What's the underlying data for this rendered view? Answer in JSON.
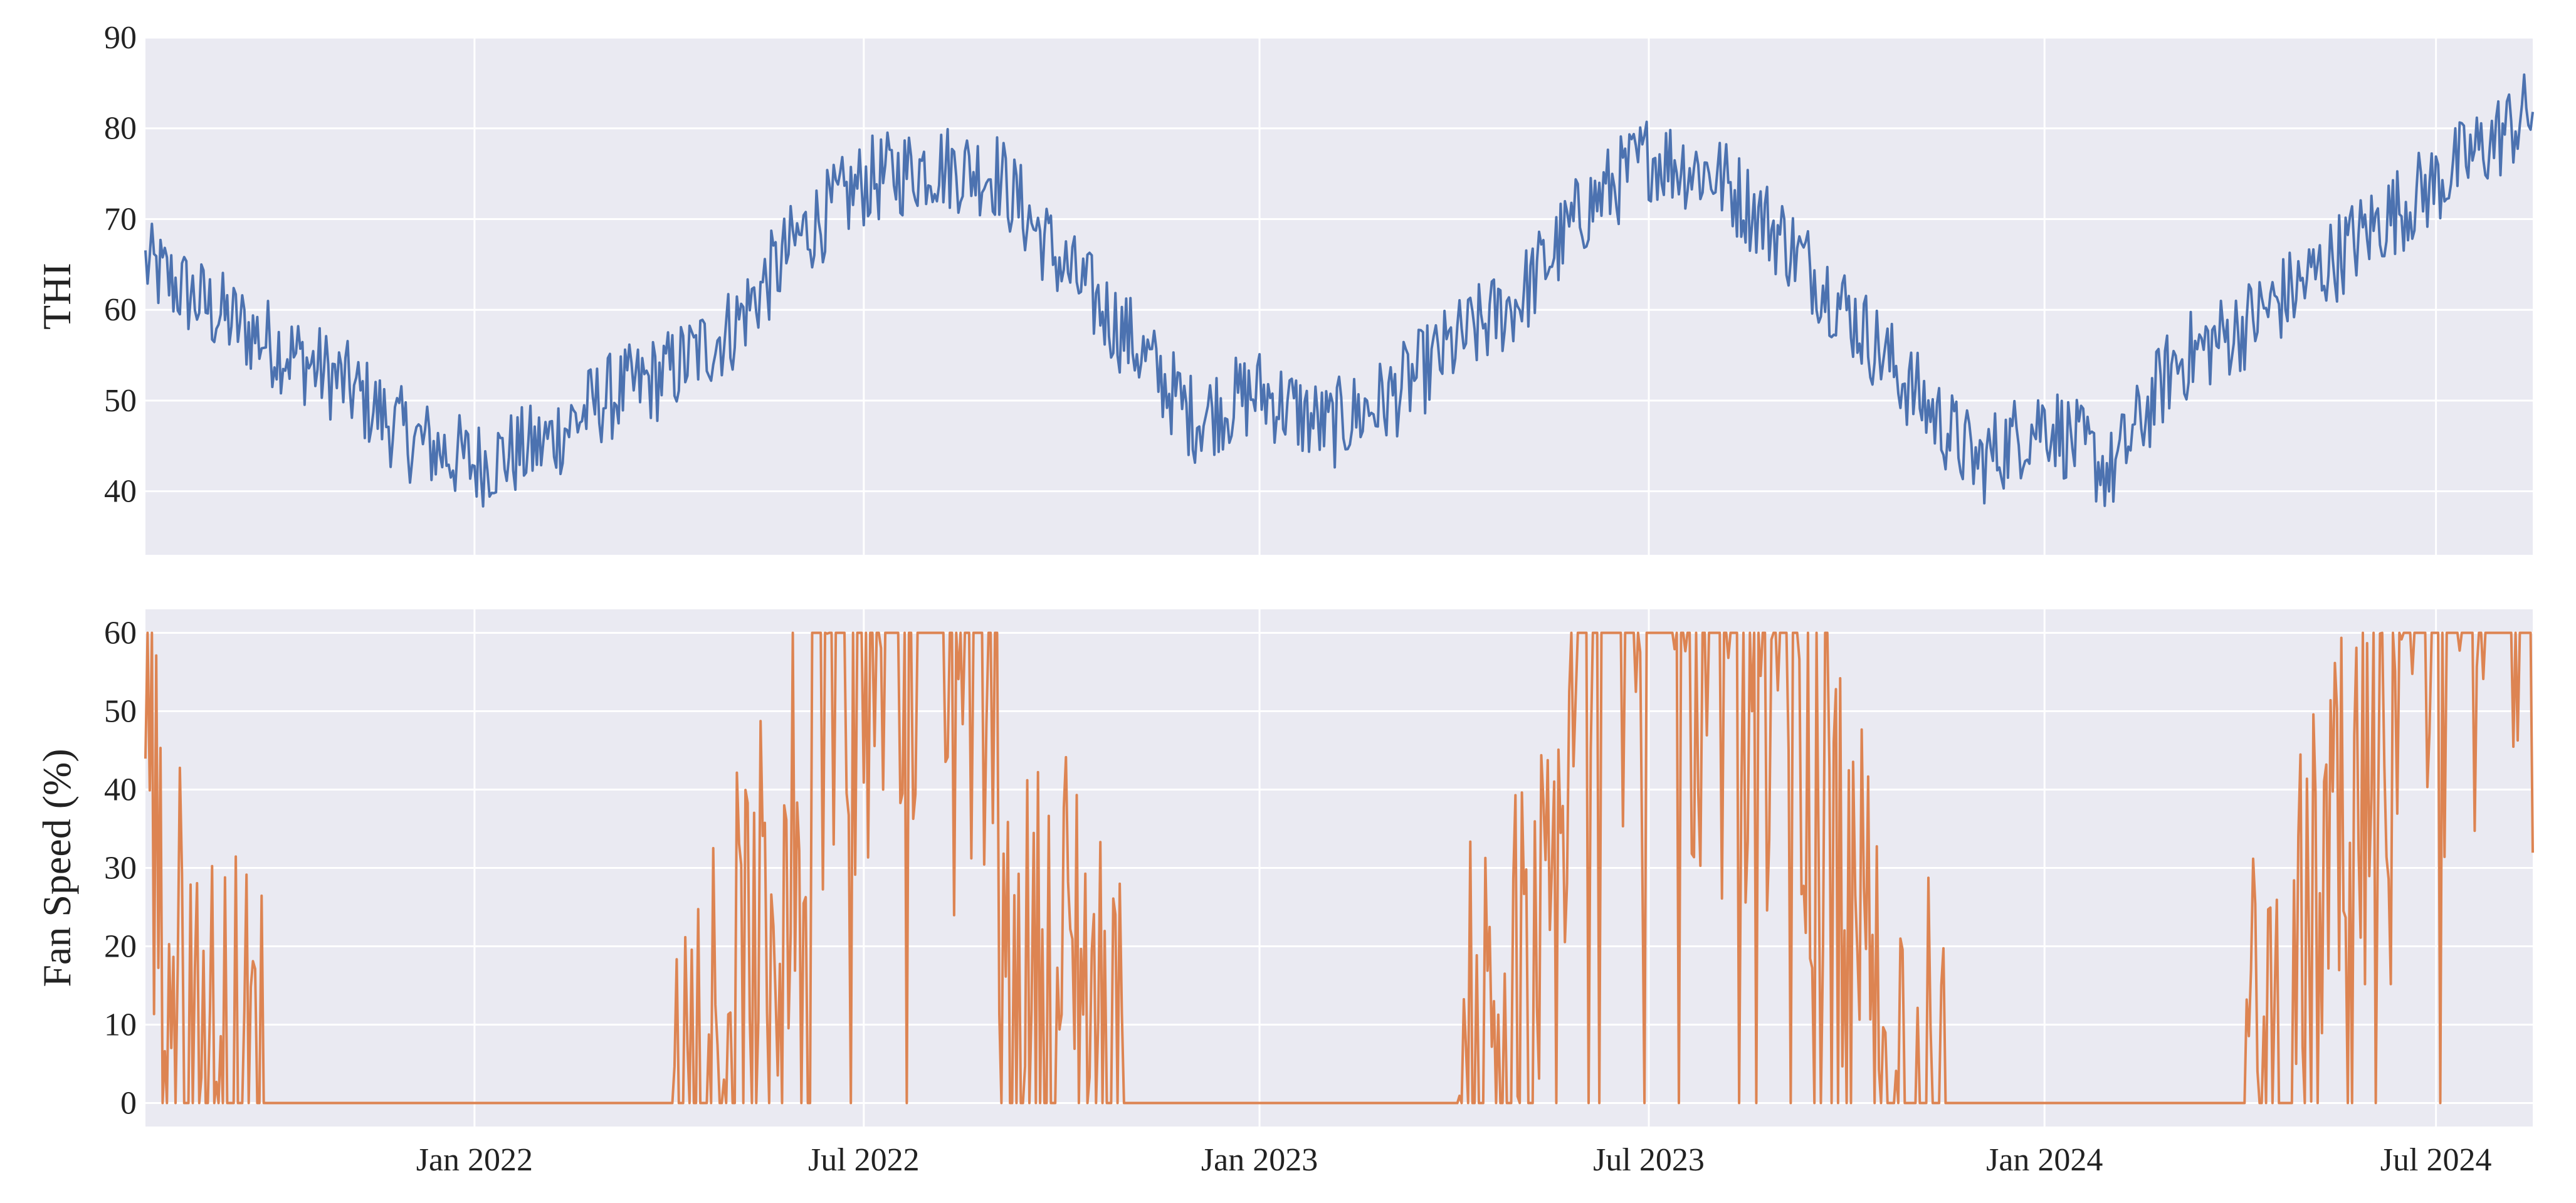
{
  "chart_data": [
    {
      "type": "line",
      "title": "",
      "xlabel": "",
      "ylabel": "THI",
      "ylim": [
        33,
        90
      ],
      "y_ticks": [
        40,
        50,
        60,
        70,
        80,
        90
      ],
      "x_range": [
        "2021-08-01",
        "2024-08-15"
      ],
      "grid": true,
      "legend": "none",
      "series": [
        {
          "color": "#4c72b0",
          "x": [
            "2021-08-01",
            "2021-09-01",
            "2021-10-01",
            "2021-11-01",
            "2021-12-01",
            "2022-01-01",
            "2022-02-01",
            "2022-03-01",
            "2022-04-01",
            "2022-05-01",
            "2022-06-01",
            "2022-07-01",
            "2022-08-01",
            "2022-09-01",
            "2022-10-01",
            "2022-11-01",
            "2022-12-01",
            "2023-01-01",
            "2023-02-01",
            "2023-03-01",
            "2023-04-01",
            "2023-05-01",
            "2023-06-01",
            "2023-07-01",
            "2023-08-01",
            "2023-09-01",
            "2023-10-01",
            "2023-11-01",
            "2023-12-01",
            "2024-01-01",
            "2024-02-01",
            "2024-03-01",
            "2024-04-01",
            "2024-05-01",
            "2024-06-01",
            "2024-07-01",
            "2024-08-15"
          ],
          "values": [
            65,
            60,
            56,
            52,
            46,
            43,
            45,
            50,
            53,
            58,
            68,
            74,
            76,
            75,
            65,
            57,
            48,
            51,
            47,
            50,
            56,
            61,
            71,
            77,
            75,
            68,
            60,
            51,
            43,
            48,
            42,
            54,
            58,
            63,
            69,
            74,
            82
          ],
          "noise": 5
        }
      ]
    },
    {
      "type": "line",
      "title": "",
      "xlabel": "",
      "ylabel": "Fan Speed (%)",
      "ylim": [
        -3,
        63
      ],
      "y_ticks": [
        0,
        10,
        20,
        30,
        40,
        50,
        60
      ],
      "x_range": [
        "2021-08-01",
        "2024-08-15"
      ],
      "x_ticks": [
        "Jan 2022",
        "Jul 2022",
        "Jan 2023",
        "Jul 2023",
        "Jan 2024",
        "Jul 2024"
      ],
      "x_tick_dates": [
        "2022-01-01",
        "2022-07-01",
        "2023-01-01",
        "2023-07-01",
        "2024-01-01",
        "2024-07-01"
      ],
      "grid": true,
      "legend": "none",
      "series": [
        {
          "color": "#dd8452",
          "x": [
            "2021-08-01",
            "2021-08-10",
            "2021-09-01",
            "2021-09-20",
            "2021-10-01",
            "2022-04-01",
            "2022-04-20",
            "2022-05-10",
            "2022-05-25",
            "2022-06-10",
            "2022-07-01",
            "2022-08-01",
            "2022-09-01",
            "2022-09-05",
            "2022-09-20",
            "2022-10-10",
            "2022-10-20",
            "2022-11-01",
            "2023-04-01",
            "2023-04-20",
            "2023-05-10",
            "2023-05-20",
            "2023-06-01",
            "2023-07-01",
            "2023-08-01",
            "2023-09-01",
            "2023-10-01",
            "2023-10-15",
            "2023-11-01",
            "2023-12-01",
            "2024-04-01",
            "2024-04-20",
            "2024-05-10",
            "2024-05-25",
            "2024-06-10",
            "2024-07-01",
            "2024-07-15",
            "2024-08-15"
          ],
          "values": [
            50,
            20,
            5,
            2,
            0,
            0,
            10,
            15,
            30,
            55,
            55,
            52,
            50,
            10,
            15,
            20,
            5,
            0,
            0,
            10,
            15,
            30,
            55,
            55,
            55,
            50,
            30,
            10,
            2,
            0,
            0,
            10,
            25,
            35,
            45,
            55,
            58,
            60
          ],
          "noise": 30,
          "cap": 60,
          "floor": 0
        }
      ]
    }
  ]
}
